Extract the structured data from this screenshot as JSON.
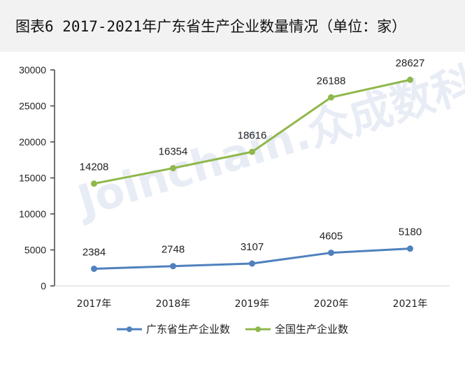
{
  "title": "图表6 2017-2021年广东省生产企业数量情况（单位：家）",
  "watermark": "Joinchain.众成数科",
  "chart_data": {
    "type": "line",
    "title": "图表6 2017-2021年广东省生产企业数量情况（单位：家）",
    "categories": [
      "2017年",
      "2018年",
      "2019年",
      "2020年",
      "2021年"
    ],
    "series": [
      {
        "name": "广东省生产企业数",
        "color": "#4f81bd",
        "values": [
          2384,
          2748,
          3107,
          4605,
          5180
        ]
      },
      {
        "name": "全国生产企业数",
        "color": "#8fb84c",
        "values": [
          14208,
          16354,
          18616,
          26188,
          28627
        ]
      }
    ],
    "xlabel": "",
    "ylabel": "",
    "ylim": [
      0,
      30000
    ],
    "yticks": [
      0,
      5000,
      10000,
      15000,
      20000,
      25000,
      30000
    ],
    "grid": false,
    "legend_position": "bottom",
    "data_labels": true
  },
  "legend": [
    {
      "label": "广东省生产企业数",
      "color": "#4f81bd"
    },
    {
      "label": "全国生产企业数",
      "color": "#8fb84c"
    }
  ]
}
